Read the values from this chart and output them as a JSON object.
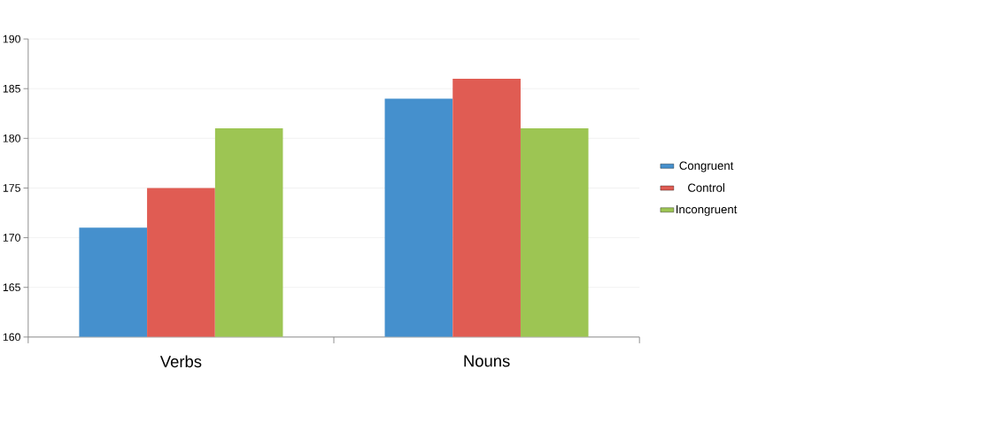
{
  "chart_data": {
    "type": "bar",
    "categories": [
      "Verbs",
      "Nouns"
    ],
    "series": [
      {
        "name": "Congruent",
        "color": "#4590cd",
        "values": [
          171,
          184
        ]
      },
      {
        "name": "Control",
        "color": "#e05c53",
        "values": [
          175,
          186
        ]
      },
      {
        "name": "Incongruent",
        "color": "#9dc553",
        "values": [
          181,
          181
        ]
      }
    ],
    "ylim": [
      160,
      190
    ],
    "yticks": [
      160,
      165,
      170,
      175,
      180,
      185,
      190
    ],
    "grid": "y",
    "legend": "right"
  }
}
